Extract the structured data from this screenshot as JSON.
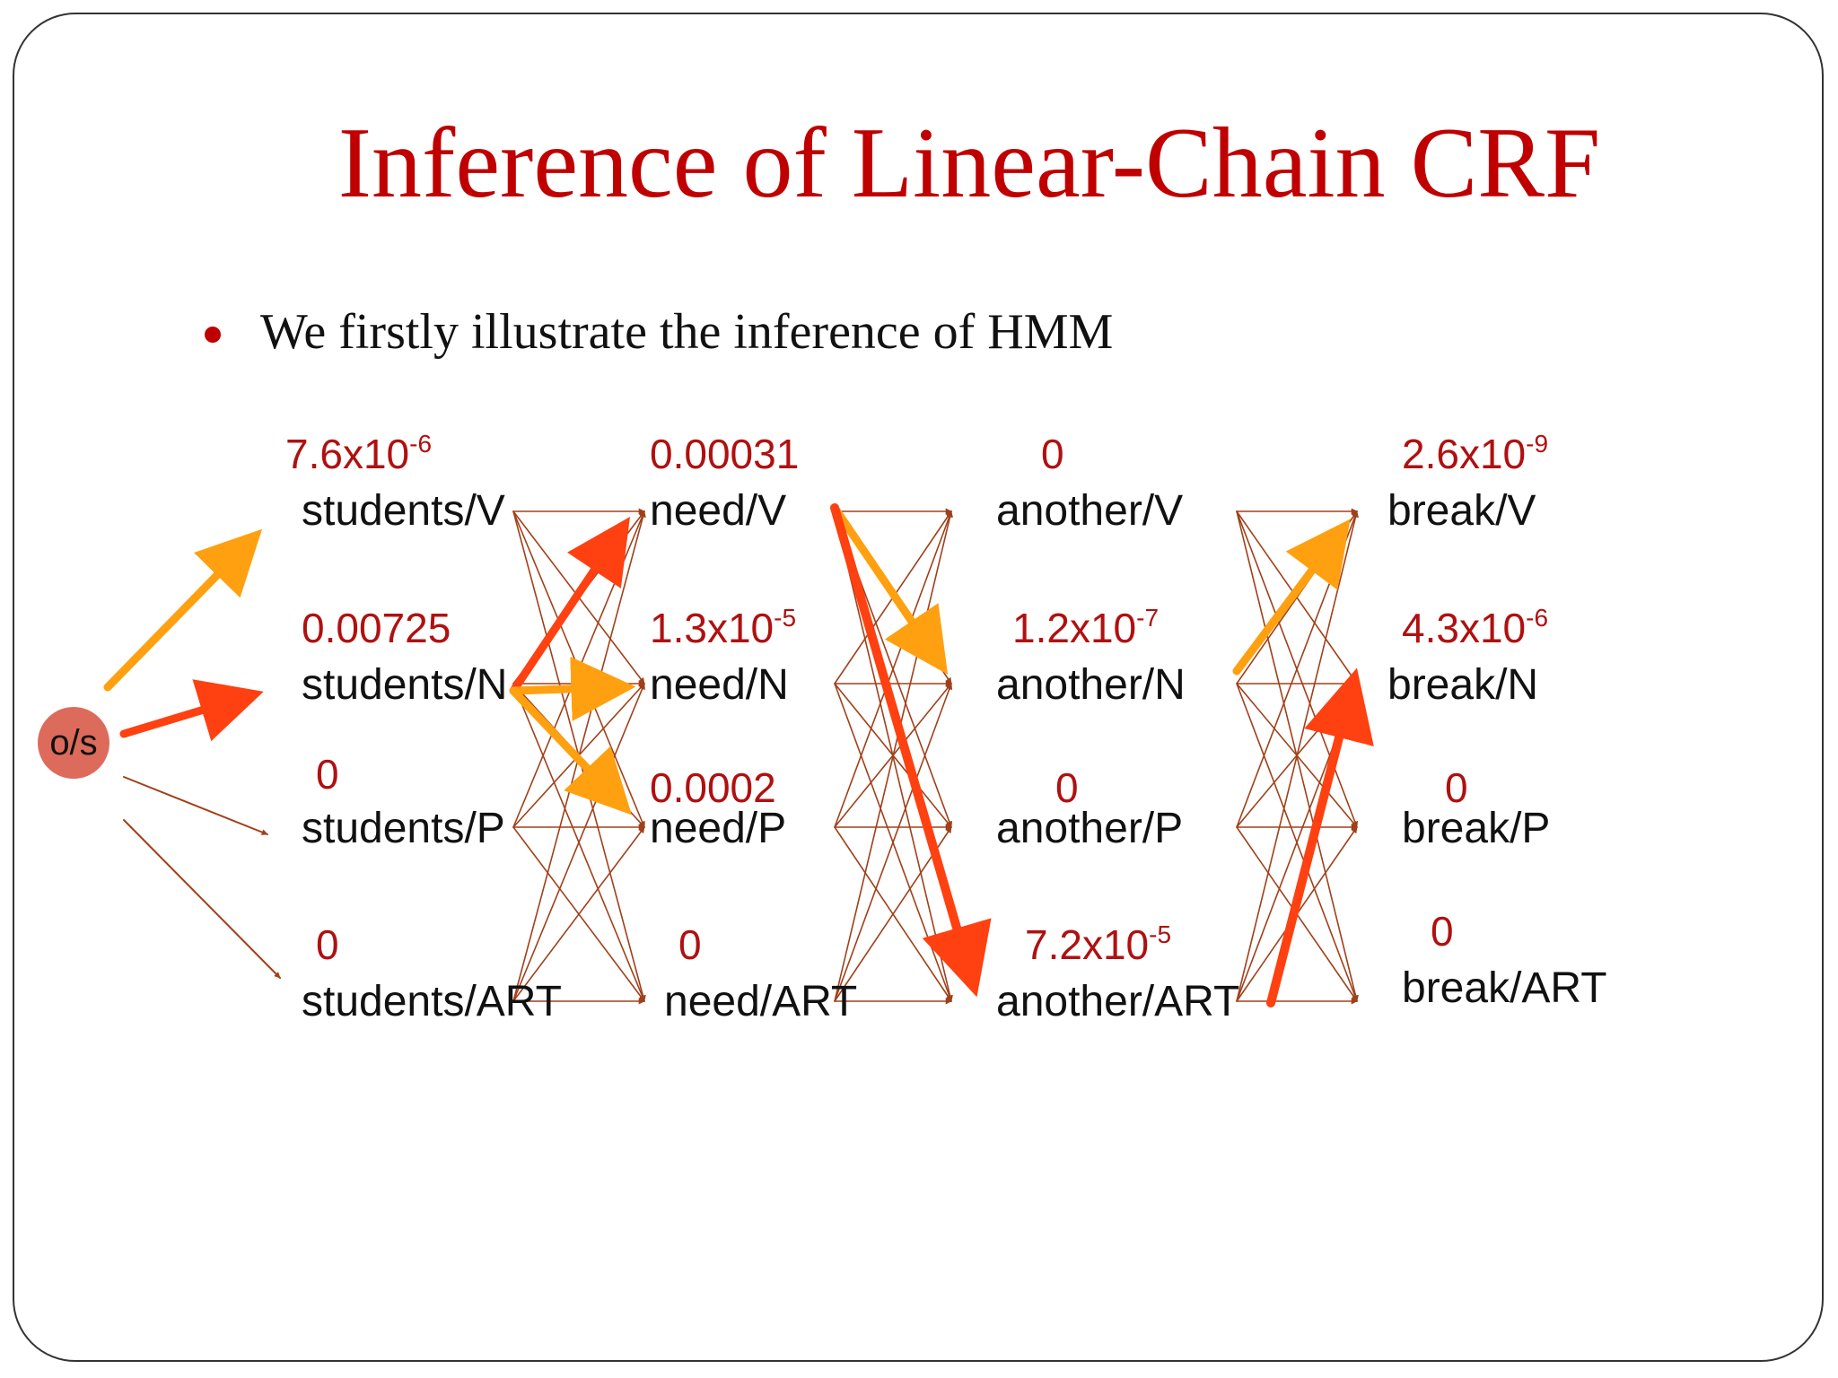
{
  "slide": {
    "title": "Inference of Linear-Chain CRF",
    "bullet": "We firstly illustrate the inference of HMM"
  },
  "start_node": "o/s",
  "states": [
    [
      "students/V",
      "students/N",
      "students/P",
      "students/ART"
    ],
    [
      "need/V",
      "need/N",
      "need/P",
      "need/ART"
    ],
    [
      "another/V",
      "another/N",
      "another/P",
      "another/ART"
    ],
    [
      "break/V",
      "break/N",
      "break/P",
      "break/ART"
    ]
  ],
  "probabilities": [
    [
      {
        "base": "7.6x10",
        "exp": "-6"
      },
      {
        "base": "0.00725",
        "exp": ""
      },
      {
        "base": "0",
        "exp": ""
      },
      {
        "base": "0",
        "exp": ""
      }
    ],
    [
      {
        "base": "0.00031",
        "exp": ""
      },
      {
        "base": "1.3x10",
        "exp": "-5"
      },
      {
        "base": "0.0002",
        "exp": ""
      },
      {
        "base": "0",
        "exp": ""
      }
    ],
    [
      {
        "base": "0",
        "exp": ""
      },
      {
        "base": "1.2x10",
        "exp": "-7"
      },
      {
        "base": "0",
        "exp": ""
      },
      {
        "base": "7.2x10",
        "exp": "-5"
      }
    ],
    [
      {
        "base": "2.6x10",
        "exp": "-9"
      },
      {
        "base": "4.3x10",
        "exp": "-6"
      },
      {
        "base": "0",
        "exp": ""
      },
      {
        "base": "0",
        "exp": ""
      }
    ]
  ],
  "colors": {
    "title": "#c00000",
    "probability_text": "#b01010",
    "thin_arrow": "#a0401a",
    "best_path_red": "#ff4010",
    "best_path_orange": "#ffa010",
    "start_node_fill": "#dd6b5c"
  }
}
